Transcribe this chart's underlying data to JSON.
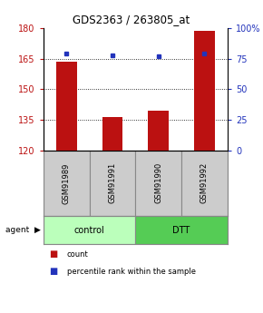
{
  "title": "GDS2363 / 263805_at",
  "samples": [
    "GSM91989",
    "GSM91991",
    "GSM91990",
    "GSM91992"
  ],
  "counts": [
    163.5,
    136.5,
    139.5,
    178.5
  ],
  "percentiles": [
    79,
    78,
    77,
    79
  ],
  "ylim_left": [
    120,
    180
  ],
  "ylim_right": [
    0,
    100
  ],
  "yticks_left": [
    120,
    135,
    150,
    165,
    180
  ],
  "yticks_right": [
    0,
    25,
    50,
    75,
    100
  ],
  "yticklabels_right": [
    "0",
    "25",
    "50",
    "75",
    "100%"
  ],
  "bar_color": "#bb1111",
  "dot_color": "#2233bb",
  "control_color": "#bbffbb",
  "dtt_color": "#55cc55",
  "sample_bg": "#cccccc",
  "bar_width": 0.45,
  "bar_bottom": 120,
  "legend_items": [
    {
      "color": "#bb1111",
      "label": "count"
    },
    {
      "color": "#2233bb",
      "label": "percentile rank within the sample"
    }
  ]
}
